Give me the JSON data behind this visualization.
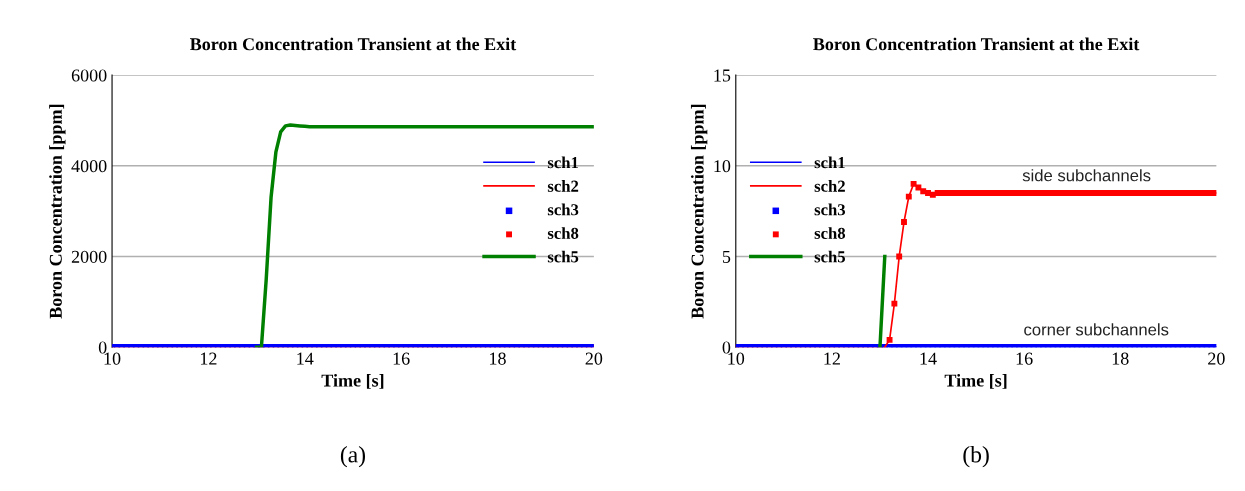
{
  "chart_data": [
    {
      "type": "line",
      "title": "Boron Concentration Transient at the Exit",
      "xlabel": "Time [s]",
      "ylabel": "Boron Concentration [ppm]",
      "x": [
        10.0,
        10.1,
        10.2,
        10.3,
        10.4,
        10.5,
        10.6,
        10.7,
        10.8,
        10.9,
        11.0,
        11.1,
        11.2,
        11.3,
        11.4,
        11.5,
        11.6,
        11.7,
        11.8,
        11.9,
        12.0,
        12.1,
        12.2,
        12.3,
        12.4,
        12.5,
        12.6,
        12.7,
        12.8,
        12.9,
        13.0,
        13.1,
        13.2,
        13.3,
        13.4,
        13.5,
        13.6,
        13.7,
        13.8,
        13.9,
        14.0,
        14.1,
        14.2,
        14.3,
        14.4,
        14.5,
        14.6,
        14.7,
        14.8,
        14.9,
        15.0,
        15.1,
        15.2,
        15.3,
        15.4,
        15.5,
        15.6,
        15.7,
        15.8,
        15.9,
        16.0,
        16.1,
        16.2,
        16.3,
        16.4,
        16.5,
        16.6,
        16.7,
        16.8,
        16.9,
        17.0,
        17.1,
        17.2,
        17.3,
        17.4,
        17.5,
        17.6,
        17.7,
        17.8,
        17.9,
        18.0,
        18.1,
        18.2,
        18.3,
        18.4,
        18.5,
        18.6,
        18.7,
        18.8,
        18.9,
        19.0,
        19.1,
        19.2,
        19.3,
        19.4,
        19.5,
        19.6,
        19.7,
        19.8,
        19.9,
        20.0
      ],
      "xlim": [
        10,
        20
      ],
      "xticks": [
        10,
        12,
        14,
        16,
        18,
        20
      ],
      "ylim": [
        0,
        6000
      ],
      "yticks": [
        0,
        2000,
        4000,
        6000
      ],
      "grid": "y",
      "legend": "right",
      "annotations": [
        "(a)"
      ],
      "series": [
        {
          "name": "sch1",
          "type": "line",
          "color": "#0000ff",
          "values": [
            null,
            null,
            null,
            null,
            null,
            null,
            null,
            null,
            null,
            null,
            null,
            null,
            null,
            null,
            null,
            null,
            null,
            null,
            null,
            null,
            null,
            null,
            null,
            null,
            null,
            null,
            null,
            null,
            null,
            null,
            null,
            null,
            null,
            null,
            null,
            null,
            null,
            null,
            null,
            null,
            null,
            null,
            null,
            null,
            null,
            null,
            null,
            null,
            null,
            null,
            null,
            null,
            null,
            null,
            null,
            null,
            null,
            null,
            null,
            null,
            null,
            null,
            null,
            null,
            null,
            null,
            null,
            null,
            null,
            null,
            null,
            null,
            null,
            null,
            null,
            null,
            null,
            null,
            null,
            null,
            null,
            null,
            null,
            null,
            null,
            null,
            null,
            null,
            null,
            null,
            null,
            null,
            null,
            null,
            null,
            null,
            null,
            null,
            null,
            null,
            null
          ]
        },
        {
          "name": "sch2",
          "type": "line",
          "color": "#ff0000",
          "values": [
            null,
            null,
            null,
            null,
            null,
            null,
            null,
            null,
            null,
            null,
            null,
            null,
            null,
            null,
            null,
            null,
            null,
            null,
            null,
            null,
            null,
            null,
            null,
            null,
            null,
            null,
            null,
            null,
            null,
            null,
            null,
            null,
            null,
            null,
            null,
            null,
            null,
            null,
            null,
            null,
            null,
            null,
            null,
            null,
            null,
            null,
            null,
            null,
            null,
            null,
            null,
            null,
            null,
            null,
            null,
            null,
            null,
            null,
            null,
            null,
            null,
            null,
            null,
            null,
            null,
            null,
            null,
            null,
            null,
            null,
            null,
            null,
            null,
            null,
            null,
            null,
            null,
            null,
            null,
            null,
            null,
            null,
            null,
            null,
            null,
            null,
            null,
            null,
            null,
            null,
            null,
            null,
            null,
            null,
            null,
            null,
            null,
            null,
            null,
            null,
            null
          ]
        },
        {
          "name": "sch3",
          "type": "scatter",
          "marker": "square",
          "color": "#0000ff",
          "values": [
            0,
            0,
            0,
            0,
            0,
            0,
            0,
            0,
            0,
            0,
            0,
            0,
            0,
            0,
            0,
            0,
            0,
            0,
            0,
            0,
            0,
            0,
            0,
            0,
            0,
            0,
            0,
            0,
            0,
            0,
            0,
            0,
            0,
            0,
            0,
            0,
            0,
            0,
            0,
            0,
            0,
            0,
            0,
            0,
            0,
            0,
            0,
            0,
            0,
            0,
            0,
            0,
            0,
            0,
            0,
            0,
            0,
            0,
            0,
            0,
            0,
            0,
            0,
            0,
            0,
            0,
            0,
            0,
            0,
            0,
            0,
            0,
            0,
            0,
            0,
            0,
            0,
            0,
            0,
            0,
            0,
            0,
            0,
            0,
            0,
            0,
            0,
            0,
            0,
            0,
            0,
            0,
            0,
            0,
            0,
            0,
            0,
            0,
            0,
            0,
            0
          ]
        },
        {
          "name": "sch8",
          "type": "scatter",
          "marker": "square",
          "color": "#ff0000",
          "values": [
            0,
            0,
            0,
            0,
            0,
            0,
            0,
            0,
            0,
            0,
            0,
            0,
            0,
            0,
            0,
            0,
            0,
            0,
            0,
            0,
            0,
            0,
            0,
            0,
            0,
            0,
            0,
            0,
            0,
            0,
            0,
            0,
            0,
            0,
            0,
            0,
            0,
            0,
            0,
            0,
            0,
            0,
            0,
            0,
            0,
            0,
            0,
            0,
            0,
            0,
            0,
            0,
            0,
            0,
            0,
            0,
            0,
            0,
            0,
            0,
            0,
            0,
            0,
            0,
            0,
            0,
            0,
            0,
            0,
            0,
            0,
            0,
            0,
            0,
            0,
            0,
            0,
            0,
            0,
            0,
            0,
            0,
            0,
            0,
            0,
            0,
            0,
            0,
            0,
            0,
            0,
            0,
            0,
            0,
            0,
            0,
            0,
            0,
            0,
            0,
            0
          ]
        },
        {
          "name": "sch5",
          "type": "line",
          "color": "#008000",
          "values": [
            null,
            null,
            null,
            null,
            null,
            null,
            null,
            null,
            null,
            null,
            null,
            null,
            null,
            null,
            null,
            null,
            null,
            null,
            null,
            null,
            null,
            null,
            null,
            null,
            null,
            null,
            null,
            null,
            null,
            null,
            0,
            0,
            1500,
            3300,
            4300,
            4750,
            4880,
            4900,
            4890,
            4880,
            4870,
            4860,
            4860,
            4860,
            4860,
            4860,
            4860,
            4860,
            4860,
            4860,
            4860,
            4860,
            4860,
            4860,
            4860,
            4860,
            4860,
            4860,
            4860,
            4860,
            4860,
            4860,
            4860,
            4860,
            4860,
            4860,
            4860,
            4860,
            4860,
            4860,
            4860,
            4860,
            4860,
            4860,
            4860,
            4860,
            4860,
            4860,
            4860,
            4860,
            4860,
            4860,
            4860,
            4860,
            4860,
            4860,
            4860,
            4860,
            4860,
            4860,
            4860,
            4860,
            4860,
            4860,
            4860,
            4860,
            4860,
            4860,
            4860,
            4860,
            4860
          ]
        }
      ]
    },
    {
      "type": "line",
      "title": "Boron Concentration Transient at the Exit",
      "xlabel": "Time [s]",
      "ylabel": "Boron Concentration [ppm]",
      "x": [
        10.0,
        10.1,
        10.2,
        10.3,
        10.4,
        10.5,
        10.6,
        10.7,
        10.8,
        10.9,
        11.0,
        11.1,
        11.2,
        11.3,
        11.4,
        11.5,
        11.6,
        11.7,
        11.8,
        11.9,
        12.0,
        12.1,
        12.2,
        12.3,
        12.4,
        12.5,
        12.6,
        12.7,
        12.8,
        12.9,
        13.0,
        13.1,
        13.2,
        13.3,
        13.4,
        13.5,
        13.6,
        13.7,
        13.8,
        13.9,
        14.0,
        14.1,
        14.2,
        14.3,
        14.4,
        14.5,
        14.6,
        14.7,
        14.8,
        14.9,
        15.0,
        15.1,
        15.2,
        15.3,
        15.4,
        15.5,
        15.6,
        15.7,
        15.8,
        15.9,
        16.0,
        16.1,
        16.2,
        16.3,
        16.4,
        16.5,
        16.6,
        16.7,
        16.8,
        16.9,
        17.0,
        17.1,
        17.2,
        17.3,
        17.4,
        17.5,
        17.6,
        17.7,
        17.8,
        17.9,
        18.0,
        18.1,
        18.2,
        18.3,
        18.4,
        18.5,
        18.6,
        18.7,
        18.8,
        18.9,
        19.0,
        19.1,
        19.2,
        19.3,
        19.4,
        19.5,
        19.6,
        19.7,
        19.8,
        19.9,
        20.0
      ],
      "xlim": [
        10,
        20
      ],
      "xticks": [
        10,
        12,
        14,
        16,
        18,
        20
      ],
      "ylim": [
        0,
        15
      ],
      "yticks": [
        0,
        5,
        10,
        15
      ],
      "grid": "y",
      "legend": "left",
      "annotations": [
        {
          "text": "side subchannels",
          "x": 17.3,
          "y": 8.5
        },
        {
          "text": "corner subchannels",
          "x": 17.5,
          "y": 0
        },
        "(b)"
      ],
      "series": [
        {
          "name": "sch1",
          "type": "line",
          "color": "#0000ff",
          "values": [
            null,
            null,
            null,
            null,
            null,
            null,
            null,
            null,
            null,
            null,
            null,
            null,
            null,
            null,
            null,
            null,
            null,
            null,
            null,
            null,
            null,
            null,
            null,
            null,
            null,
            null,
            null,
            null,
            null,
            null,
            null,
            null,
            0,
            0,
            0,
            0,
            0,
            0,
            0,
            0,
            0,
            0,
            0,
            0,
            0,
            0,
            0,
            0,
            0,
            0,
            0,
            0,
            0,
            0,
            0,
            0,
            0,
            0,
            0,
            0,
            0,
            0,
            0,
            0,
            0,
            0,
            0,
            0,
            0,
            0,
            0,
            0,
            0,
            0,
            0,
            0,
            0,
            0,
            0,
            0,
            0,
            0,
            0,
            0,
            0,
            0,
            0,
            0,
            0,
            0,
            0,
            0,
            0,
            0,
            0,
            0,
            0,
            0,
            0,
            0,
            0
          ]
        },
        {
          "name": "sch2",
          "type": "line",
          "color": "#ff0000",
          "values": [
            null,
            null,
            null,
            null,
            null,
            null,
            null,
            null,
            null,
            null,
            null,
            null,
            null,
            null,
            null,
            null,
            null,
            null,
            null,
            null,
            null,
            null,
            null,
            null,
            null,
            null,
            null,
            null,
            null,
            null,
            null,
            0,
            0.4,
            2.4,
            5.0,
            6.9,
            8.3,
            9.0,
            8.8,
            8.6,
            8.5,
            8.4,
            8.5,
            8.5,
            8.5,
            8.5,
            8.5,
            8.5,
            8.5,
            8.5,
            8.5,
            8.5,
            8.5,
            8.5,
            8.5,
            8.5,
            8.5,
            8.5,
            8.5,
            8.5,
            8.5,
            8.5,
            8.5,
            8.5,
            8.5,
            8.5,
            8.5,
            8.5,
            8.5,
            8.5,
            8.5,
            8.5,
            8.5,
            8.5,
            8.5,
            8.5,
            8.5,
            8.5,
            8.5,
            8.5,
            8.5,
            8.5,
            8.5,
            8.5,
            8.5,
            8.5,
            8.5,
            8.5,
            8.5,
            8.5,
            8.5,
            8.5,
            8.5,
            8.5,
            8.5,
            8.5,
            8.5,
            8.5,
            8.5,
            8.5,
            8.5
          ]
        },
        {
          "name": "sch3",
          "type": "scatter",
          "marker": "square",
          "color": "#0000ff",
          "values": [
            0,
            0,
            0,
            0,
            0,
            0,
            0,
            0,
            0,
            0,
            0,
            0,
            0,
            0,
            0,
            0,
            0,
            0,
            0,
            0,
            0,
            0,
            0,
            0,
            0,
            0,
            0,
            0,
            0,
            0,
            0,
            0,
            0,
            0,
            0,
            0,
            0,
            0,
            0,
            0,
            0,
            0,
            0,
            0,
            0,
            0,
            0,
            0,
            0,
            0,
            0,
            0,
            0,
            0,
            0,
            0,
            0,
            0,
            0,
            0,
            0,
            0,
            0,
            0,
            0,
            0,
            0,
            0,
            0,
            0,
            0,
            0,
            0,
            0,
            0,
            0,
            0,
            0,
            0,
            0,
            0,
            0,
            0,
            0,
            0,
            0,
            0,
            0,
            0,
            0,
            0,
            0,
            0,
            0,
            0,
            0,
            0,
            0,
            0,
            0,
            0
          ]
        },
        {
          "name": "sch8",
          "type": "scatter",
          "marker": "square",
          "color": "#ff0000",
          "values": [
            0,
            0,
            0,
            0,
            0,
            0,
            0,
            0,
            0,
            0,
            0,
            0,
            0,
            0,
            0,
            0,
            0,
            0,
            0,
            0,
            0,
            0,
            0,
            0,
            0,
            0,
            0,
            0,
            0,
            0,
            0,
            0,
            0.4,
            2.4,
            5.0,
            6.9,
            8.3,
            9.0,
            8.8,
            8.6,
            8.5,
            8.4,
            8.5,
            8.5,
            8.5,
            8.5,
            8.5,
            8.5,
            8.5,
            8.5,
            8.5,
            8.5,
            8.5,
            8.5,
            8.5,
            8.5,
            8.5,
            8.5,
            8.5,
            8.5,
            8.5,
            8.5,
            8.5,
            8.5,
            8.5,
            8.5,
            8.5,
            8.5,
            8.5,
            8.5,
            8.5,
            8.5,
            8.5,
            8.5,
            8.5,
            8.5,
            8.5,
            8.5,
            8.5,
            8.5,
            8.5,
            8.5,
            8.5,
            8.5,
            8.5,
            8.5,
            8.5,
            8.5,
            8.5,
            8.5,
            8.5,
            8.5,
            8.5,
            8.5,
            8.5,
            8.5,
            8.5,
            8.5,
            8.5,
            8.5,
            8.5
          ]
        },
        {
          "name": "sch5",
          "type": "line",
          "color": "#008000",
          "values": [
            null,
            null,
            null,
            null,
            null,
            null,
            null,
            null,
            null,
            null,
            null,
            null,
            null,
            null,
            null,
            null,
            null,
            null,
            null,
            null,
            null,
            null,
            null,
            null,
            null,
            null,
            null,
            null,
            null,
            null,
            0,
            5,
            null,
            null,
            null,
            null,
            null,
            null,
            null,
            null,
            null,
            null,
            null,
            null,
            null,
            null,
            null,
            null,
            null,
            null,
            null,
            null,
            null,
            null,
            null,
            null,
            null,
            null,
            null,
            null,
            null,
            null,
            null,
            null,
            null,
            null,
            null,
            null,
            null,
            null,
            null,
            null,
            null,
            null,
            null,
            null,
            null,
            null,
            null,
            null,
            null,
            null,
            null,
            null,
            null,
            null,
            null,
            null,
            null,
            null,
            null,
            null,
            null,
            null,
            null,
            null,
            null,
            null,
            null,
            null,
            null
          ]
        }
      ]
    }
  ]
}
